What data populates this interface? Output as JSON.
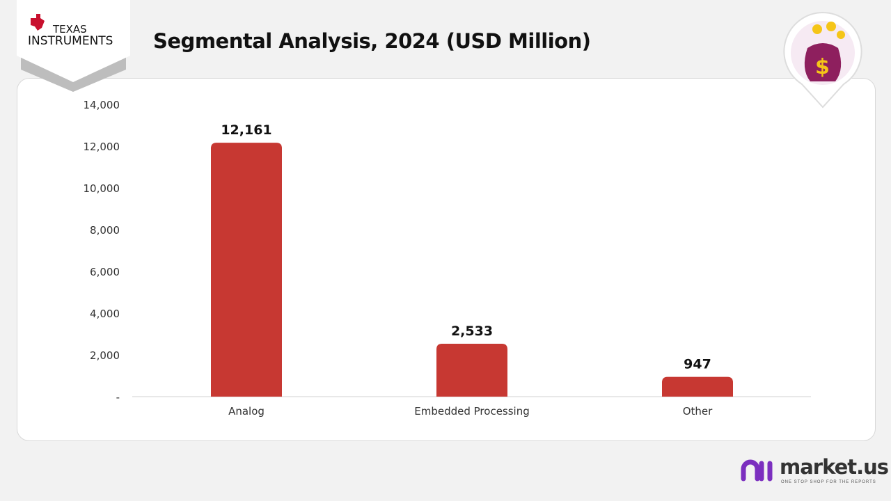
{
  "header": {
    "title": "Segmental Analysis, 2024 (USD Million)",
    "company_logo": "Texas Instruments"
  },
  "branding": {
    "name": "market.us",
    "tagline": "ONE STOP SHOP FOR THE REPORTS"
  },
  "colors": {
    "bar": "#c73832",
    "accent": "#7b2fbf"
  },
  "chart_data": {
    "type": "bar",
    "title": "Segmental Analysis, 2024 (USD Million)",
    "categories": [
      "Analog",
      "Embedded Processing",
      "Other"
    ],
    "values": [
      12161,
      2533,
      947
    ],
    "value_labels": [
      "12,161",
      "2,533",
      "947"
    ],
    "yticks": [
      "-",
      "2,000",
      "4,000",
      "6,000",
      "8,000",
      "10,000",
      "12,000",
      "14,000"
    ],
    "ylim": [
      0,
      14000
    ],
    "grid": false,
    "xlabel": "",
    "ylabel": ""
  }
}
